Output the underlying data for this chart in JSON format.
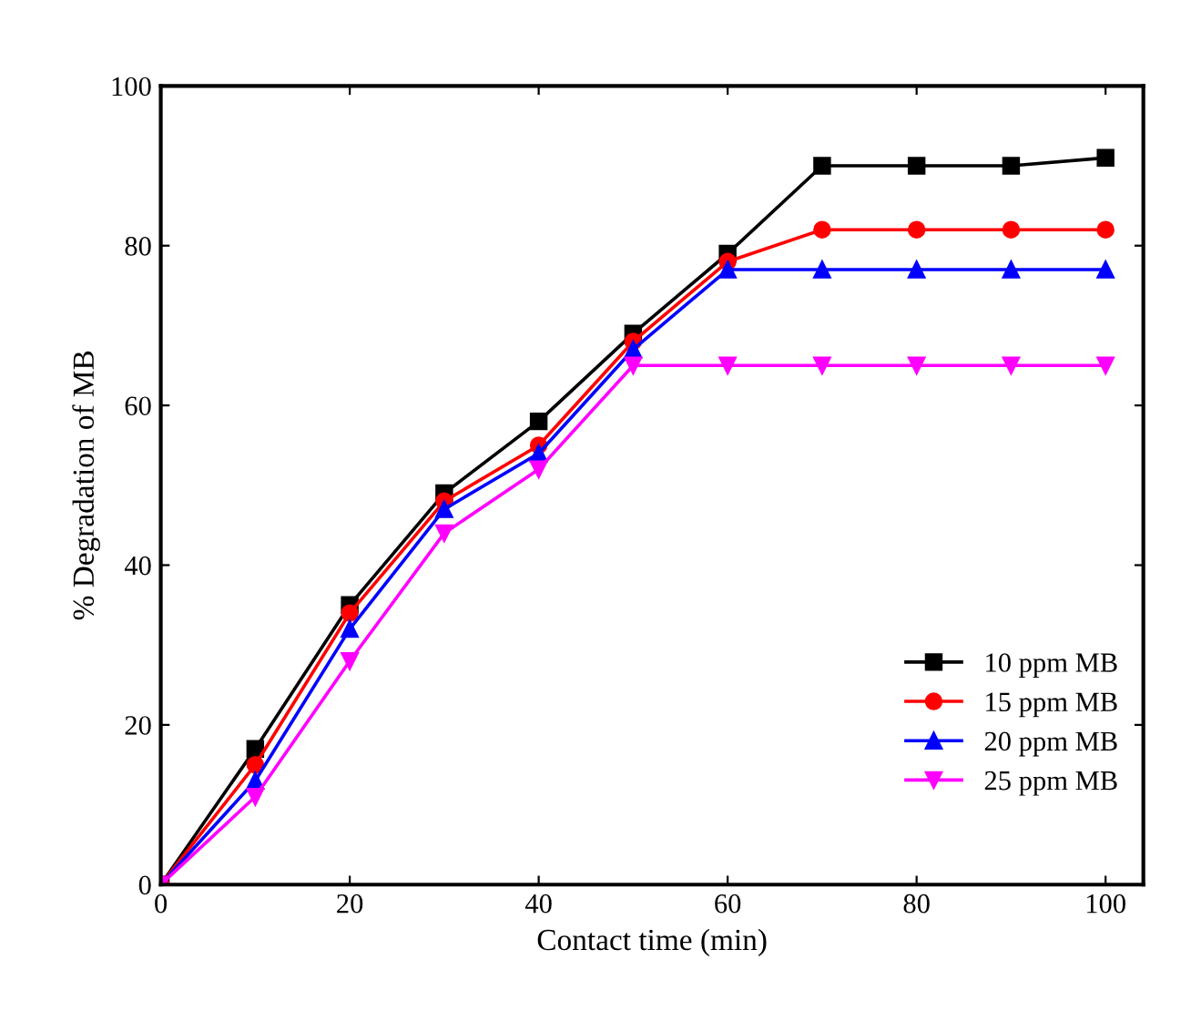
{
  "chart_data": {
    "type": "line",
    "xlabel": "Contact time (min)",
    "ylabel": "% Degradation of MB",
    "x": [
      0,
      10,
      20,
      30,
      40,
      50,
      60,
      70,
      80,
      90,
      100
    ],
    "series": [
      {
        "name": "10 ppm MB",
        "color": "#000000",
        "marker": "square",
        "values": [
          0,
          17,
          35,
          49,
          58,
          69,
          79,
          90,
          90,
          90,
          91
        ]
      },
      {
        "name": "15 ppm MB",
        "color": "#ff0000",
        "marker": "circle",
        "values": [
          0,
          15,
          34,
          48,
          55,
          68,
          78,
          82,
          82,
          82,
          82
        ]
      },
      {
        "name": "20 ppm MB",
        "color": "#0000ff",
        "marker": "triangle",
        "values": [
          0,
          13,
          32,
          47,
          54,
          67,
          77,
          77,
          77,
          77,
          77
        ]
      },
      {
        "name": "25 ppm MB",
        "color": "#ff00ff",
        "marker": "triangle_down",
        "values": [
          0,
          11,
          28,
          44,
          52,
          65,
          65,
          65,
          65,
          65,
          65
        ]
      }
    ],
    "xlim": [
      0,
      104
    ],
    "ylim": [
      0,
      100
    ],
    "xticks": [
      0,
      20,
      40,
      60,
      80,
      100
    ],
    "yticks": [
      0,
      20,
      40,
      60,
      80,
      100
    ],
    "grid": false,
    "legend": "bottom right"
  }
}
